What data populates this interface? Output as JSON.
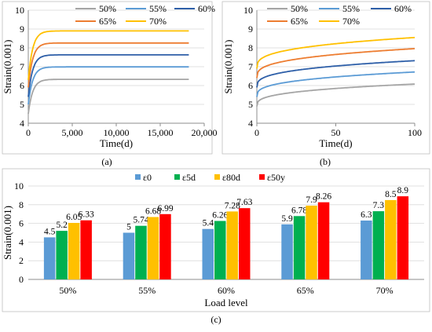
{
  "colors": {
    "s50": "#a5a5a5",
    "s55": "#5b9bd5",
    "s60": "#2e5fa8",
    "s65": "#ed7d31",
    "s70": "#ffc000",
    "e0": "#5b9bd5",
    "e5d": "#00b050",
    "e80d": "#ffc000",
    "e50y": "#ff0000",
    "grid": "#d9d9d9",
    "frame": "#bfbfbf"
  },
  "panel_labels": {
    "a": "(a)",
    "b": "(b)",
    "c": "(c)"
  },
  "chart_data": [
    {
      "id": "a",
      "type": "line",
      "xlabel": "Time(d)",
      "ylabel": "Strain(0.001)",
      "xlim": [
        0,
        20000
      ],
      "ylim": [
        4,
        10
      ],
      "xticks": [
        0,
        5000,
        10000,
        15000,
        20000
      ],
      "xtick_labels": [
        "0",
        "5,000",
        "10,000",
        "15,000",
        "20,000"
      ],
      "yticks": [
        4,
        5,
        6,
        7,
        8,
        9,
        10
      ],
      "ytick_labels": [
        "4",
        "5",
        "6",
        "7",
        "8",
        "9",
        "10"
      ],
      "grid": true,
      "legend_position": "top",
      "legend_rows": [
        [
          "50%",
          "55%",
          "60%"
        ],
        [
          "65%",
          "70%"
        ]
      ],
      "x_end": 18250,
      "series": [
        {
          "name": "50%",
          "color_key": "s50",
          "start": 4.5,
          "end": 6.33
        },
        {
          "name": "55%",
          "color_key": "s55",
          "start": 5.0,
          "end": 6.99
        },
        {
          "name": "60%",
          "color_key": "s60",
          "start": 5.4,
          "end": 7.63
        },
        {
          "name": "65%",
          "color_key": "s65",
          "start": 5.9,
          "end": 8.26
        },
        {
          "name": "70%",
          "color_key": "s70",
          "start": 6.3,
          "end": 8.9
        }
      ]
    },
    {
      "id": "b",
      "type": "line",
      "xlabel": "Time(d)",
      "ylabel": "Strain(0.001)",
      "xlim": [
        0,
        100
      ],
      "ylim": [
        4,
        10
      ],
      "xticks": [
        0,
        50,
        100
      ],
      "xtick_labels": [
        "0",
        "50",
        "100"
      ],
      "yticks": [
        4,
        5,
        6,
        7,
        8,
        9,
        10
      ],
      "ytick_labels": [
        "4",
        "5",
        "6",
        "7",
        "8",
        "9",
        "10"
      ],
      "grid": true,
      "legend_position": "top",
      "legend_rows": [
        [
          "50%",
          "55%",
          "60%"
        ],
        [
          "65%",
          "70%"
        ]
      ],
      "series": [
        {
          "name": "50%",
          "color_key": "s50",
          "start": 4.9,
          "end": 6.08
        },
        {
          "name": "55%",
          "color_key": "s55",
          "start": 5.4,
          "end": 6.72
        },
        {
          "name": "60%",
          "color_key": "s60",
          "start": 5.9,
          "end": 7.32
        },
        {
          "name": "65%",
          "color_key": "s65",
          "start": 6.4,
          "end": 7.96
        },
        {
          "name": "70%",
          "color_key": "s70",
          "start": 6.9,
          "end": 8.55
        }
      ]
    },
    {
      "id": "c",
      "type": "bar",
      "xlabel": "Load level",
      "ylabel": "Strain(0.001)",
      "ylim": [
        0,
        10
      ],
      "yticks": [
        0,
        2,
        4,
        6,
        8,
        10
      ],
      "ytick_labels": [
        "0",
        "2",
        "4",
        "6",
        "8",
        "10"
      ],
      "grid": true,
      "legend_position": "top",
      "categories": [
        "50%",
        "55%",
        "60%",
        "65%",
        "70%"
      ],
      "series": [
        {
          "name": "ε0",
          "color_key": "e0",
          "values": [
            4.5,
            5,
            5.4,
            5.9,
            6.3
          ],
          "labels": [
            "4.5",
            "5",
            "5.4",
            "5.9",
            "6.3"
          ]
        },
        {
          "name": "ε5d",
          "color_key": "e5d",
          "values": [
            5.2,
            5.74,
            6.26,
            6.78,
            7.3
          ],
          "labels": [
            "5.2",
            "5.74",
            "6.26",
            "6.78",
            "7.3"
          ]
        },
        {
          "name": "ε80d",
          "color_key": "e80d",
          "values": [
            6.05,
            6.68,
            7.28,
            7.9,
            8.5
          ],
          "labels": [
            "6.05",
            "6.68",
            "7.28",
            "7.9",
            "8.5"
          ]
        },
        {
          "name": "ε50y",
          "color_key": "e50y",
          "values": [
            6.33,
            6.99,
            7.63,
            8.26,
            8.9
          ],
          "labels": [
            "6.33",
            "6.99",
            "7.63",
            "8.26",
            "8.9"
          ]
        }
      ]
    }
  ]
}
